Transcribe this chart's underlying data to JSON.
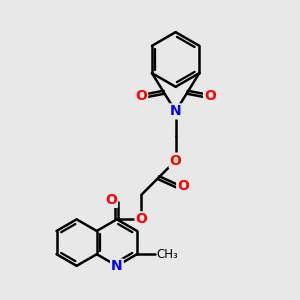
{
  "background_color": "#e8e8e8",
  "bond_color": "#000000",
  "bond_width": 1.8,
  "atom_colors": {
    "N": "#0000ff",
    "O": "#ff0000",
    "C": "#000000"
  },
  "font_size_atom": 10,
  "figsize": [
    3.0,
    3.0
  ],
  "dpi": 100
}
